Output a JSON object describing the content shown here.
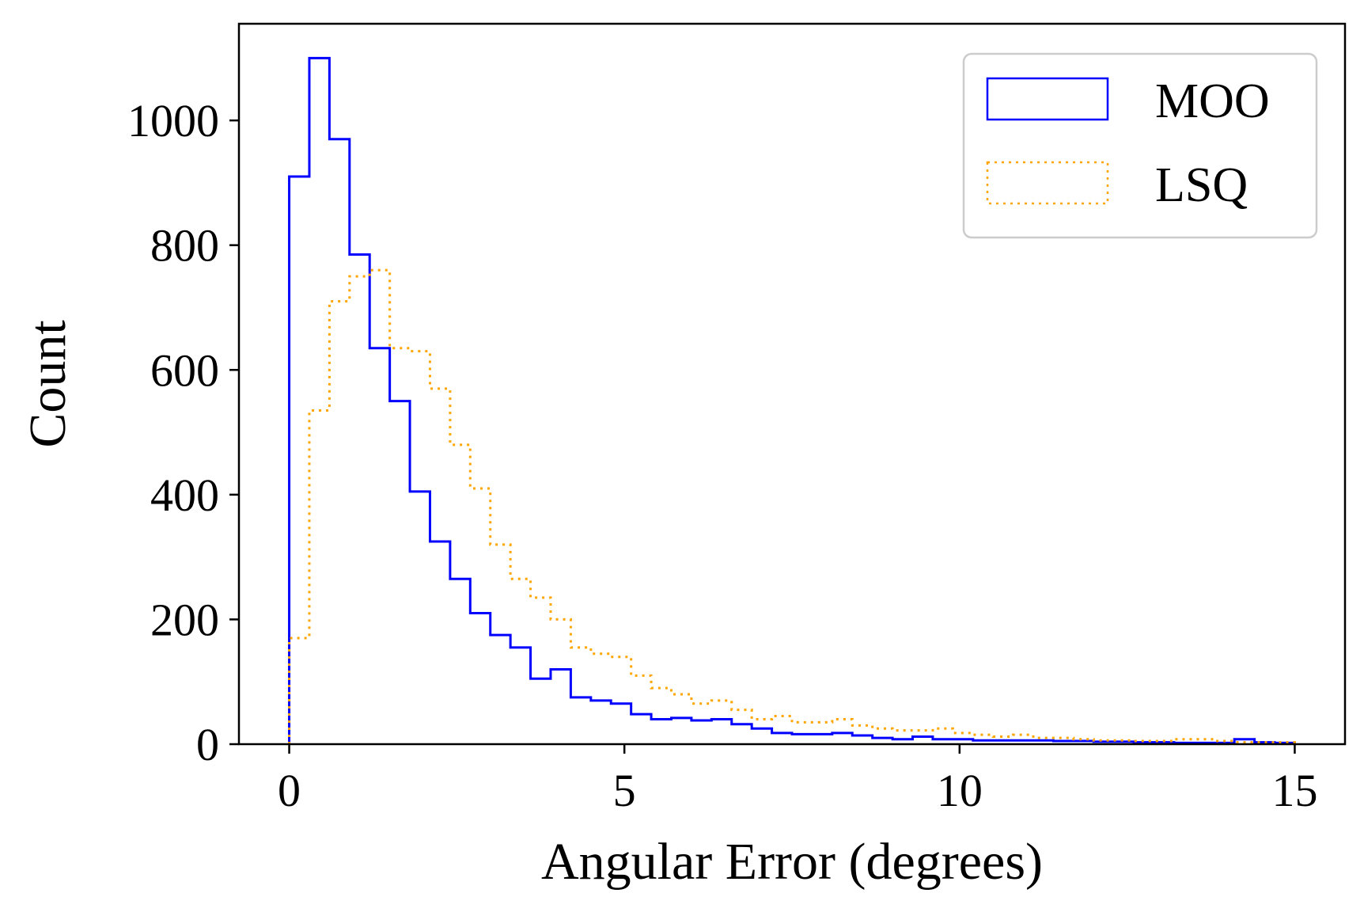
{
  "chart_data": {
    "type": "histogram",
    "xlabel": "Angular Error (degrees)",
    "ylabel": "Count",
    "xlim": [
      -0.75,
      15.75
    ],
    "ylim": [
      0,
      1155
    ],
    "xticks": [
      "0",
      "5",
      "10",
      "15"
    ],
    "xtick_values": [
      0,
      5,
      10,
      15
    ],
    "yticks": [
      "0",
      "200",
      "400",
      "600",
      "800",
      "1000"
    ],
    "ytick_values": [
      0,
      200,
      400,
      600,
      800,
      1000
    ],
    "grid": false,
    "legend_position": "top-right",
    "bin_start": 0,
    "bin_width": 0.3,
    "bin_count": 50,
    "series": [
      {
        "name": "MOO",
        "color": "#0000ff",
        "linestyle": "solid",
        "values": [
          910,
          1100,
          970,
          785,
          635,
          550,
          405,
          325,
          265,
          210,
          175,
          155,
          105,
          120,
          75,
          70,
          65,
          48,
          40,
          42,
          38,
          40,
          32,
          25,
          18,
          16,
          16,
          18,
          14,
          10,
          8,
          12,
          8,
          8,
          6,
          6,
          6,
          6,
          5,
          5,
          4,
          4,
          3,
          3,
          2,
          2,
          2,
          8,
          3,
          2
        ]
      },
      {
        "name": "LSQ",
        "color": "#ffa500",
        "linestyle": "dotted",
        "values": [
          170,
          535,
          710,
          750,
          760,
          635,
          630,
          570,
          480,
          410,
          320,
          265,
          235,
          200,
          155,
          145,
          140,
          110,
          90,
          80,
          65,
          70,
          55,
          40,
          45,
          35,
          35,
          40,
          30,
          25,
          22,
          22,
          25,
          18,
          15,
          12,
          15,
          10,
          10,
          8,
          6,
          6,
          5,
          5,
          8,
          8,
          5,
          3,
          3,
          3
        ]
      }
    ]
  }
}
